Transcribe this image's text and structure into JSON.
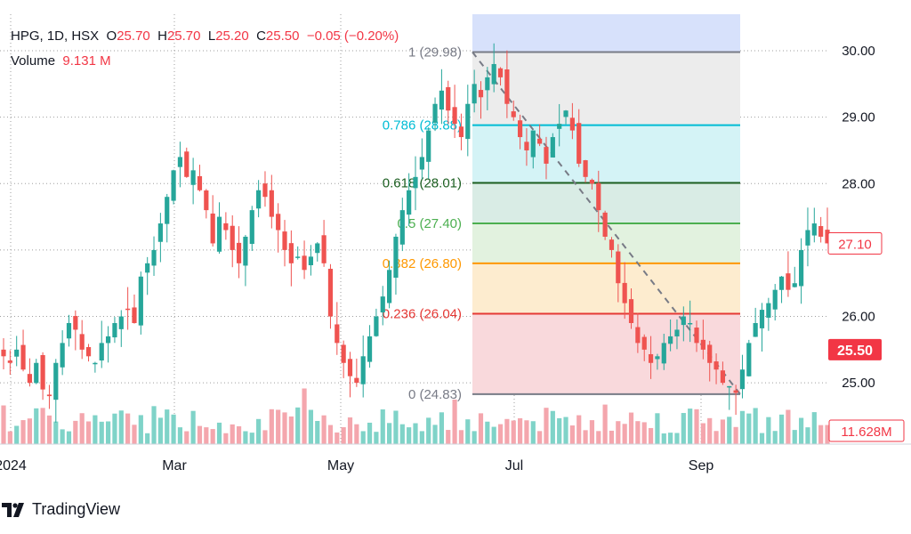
{
  "legend": {
    "symbol": "HPG, 1D, HSX",
    "open_label": "O",
    "open": "25.70",
    "high_label": "H",
    "high": "25.70",
    "low_label": "L",
    "low": "25.20",
    "close_label": "C",
    "close": "25.50",
    "change": "−0.05 (−0.20%)",
    "volume_label": "Volume",
    "volume": "9.131 M"
  },
  "brand": {
    "name": "TradingView",
    "icon": "tradingview-logo"
  },
  "colors": {
    "up": "#26a69a",
    "down": "#ef5350",
    "up_volume": "#7fd3c8",
    "down_volume": "#f4a6ad",
    "price_badge": "#f23645",
    "grid": "#9e9e9e"
  },
  "chart_data": {
    "type": "candlestick",
    "symbol": "HPG",
    "interval": "1D",
    "exchange": "HSX",
    "x_ticks": [
      "2024",
      "Mar",
      "May",
      "Jul",
      "Sep"
    ],
    "y_ticks": [
      "25.00",
      "26.00",
      "27.00",
      "28.00",
      "29.00",
      "30.00"
    ],
    "ylim": [
      24.6,
      30.55
    ],
    "price_labels": [
      {
        "text": "27.10",
        "value": 27.1,
        "style": "outline"
      },
      {
        "text": "25.50",
        "value": 25.5,
        "style": "filled"
      },
      {
        "text": "11.628M",
        "value": 11.628,
        "style": "outline"
      }
    ],
    "fibonacci": {
      "high": 29.98,
      "low": 24.83,
      "levels": [
        {
          "label": "1 (29.98)",
          "value": 29.98,
          "color": "#787b86",
          "fill": "#ececec"
        },
        {
          "label": "0.786 (28.88)",
          "value": 28.88,
          "color": "#00bcd4",
          "fill": "#d4f3f6"
        },
        {
          "label": "0.618 (28.01)",
          "value": 28.01,
          "color": "#1b5e20",
          "fill": "#d9ece5"
        },
        {
          "label": "0.5 (27.40)",
          "value": 27.4,
          "color": "#4caf50",
          "fill": "#e2f2df"
        },
        {
          "label": "0.382 (26.80)",
          "value": 26.8,
          "color": "#ff9800",
          "fill": "#fdeccf"
        },
        {
          "label": "0.236 (26.04)",
          "value": 26.04,
          "color": "#e53935",
          "fill": "#f9d9dc"
        },
        {
          "label": "0 (24.83)",
          "value": 24.83,
          "color": "#787b86",
          "fill": null
        }
      ],
      "extension_fill": "#d7e1fb"
    },
    "series_closes": [
      25.4,
      25.3,
      25.5,
      25.2,
      25.0,
      25.3,
      24.9,
      24.8,
      25.3,
      25.6,
      25.9,
      25.8,
      25.5,
      25.4,
      25.3,
      25.6,
      25.7,
      25.9,
      26.0,
      26.1,
      25.9,
      26.6,
      26.8,
      27.0,
      27.4,
      27.8,
      28.2,
      28.4,
      28.1,
      28.2,
      27.9,
      27.6,
      27.1,
      27.5,
      27.3,
      27.0,
      26.8,
      27.2,
      27.6,
      27.9,
      27.8,
      27.5,
      27.3,
      27.0,
      26.8,
      26.9,
      26.7,
      26.9,
      27.1,
      26.8,
      26.0,
      25.6,
      25.3,
      25.1,
      25.0,
      25.4,
      25.7,
      26.0,
      26.3,
      26.7,
      27.2,
      27.6,
      27.9,
      28.1,
      28.4,
      28.8,
      29.2,
      29.4,
      29.1,
      28.9,
      28.7,
      29.2,
      29.5,
      29.3,
      29.6,
      29.8,
      29.6,
      29.2,
      29.0,
      28.7,
      28.5,
      28.8,
      28.6,
      28.3,
      28.7,
      28.9,
      29.1,
      28.8,
      28.3,
      28.1,
      28.0,
      27.6,
      27.2,
      27.0,
      26.5,
      26.2,
      25.9,
      25.6,
      25.5,
      25.3,
      25.4,
      25.6,
      25.7,
      25.8,
      26.0,
      25.9,
      25.6,
      25.5,
      25.3,
      25.2,
      25.0,
      24.95,
      24.85,
      25.2,
      25.6,
      25.9,
      26.1,
      26.2,
      26.4,
      26.6,
      26.4,
      26.5,
      27.0,
      27.3,
      27.4,
      27.2,
      27.1
    ]
  }
}
